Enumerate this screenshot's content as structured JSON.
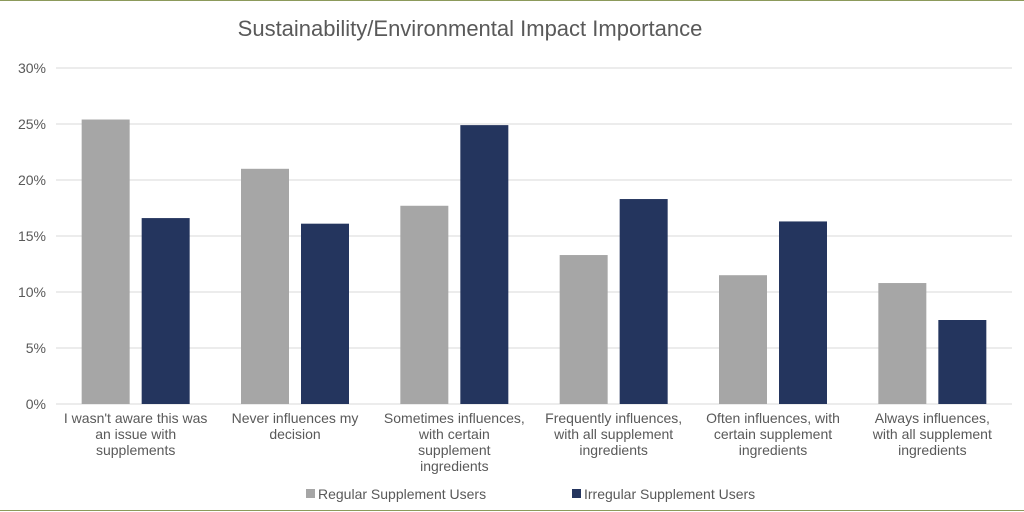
{
  "chart_data": {
    "type": "bar",
    "title": "Sustainability/Environmental Impact Importance",
    "xlabel": "",
    "ylabel": "",
    "ylim": [
      0,
      30
    ],
    "y_ticks": [
      "0%",
      "5%",
      "10%",
      "15%",
      "20%",
      "25%",
      "30%"
    ],
    "grid": true,
    "legend_position": "bottom",
    "categories": [
      [
        "I wasn't aware this was",
        "an issue with",
        "supplements"
      ],
      [
        "Never influences my",
        "decision"
      ],
      [
        "Sometimes influences,",
        "with certain",
        "supplement",
        "ingredients"
      ],
      [
        "Frequently influences,",
        "with all supplement",
        "ingredients"
      ],
      [
        "Often influences, with",
        "certain supplement",
        "ingredients"
      ],
      [
        "Always influences,",
        "with all supplement",
        "ingredients"
      ]
    ],
    "series": [
      {
        "name": "Regular Supplement Users",
        "color": "#a6a6a6",
        "values": [
          25.4,
          21.0,
          17.7,
          13.3,
          11.5,
          10.8
        ]
      },
      {
        "name": "Irregular Supplement Users",
        "color": "#24355e",
        "values": [
          16.6,
          16.1,
          24.9,
          18.3,
          16.3,
          7.5
        ]
      }
    ]
  }
}
